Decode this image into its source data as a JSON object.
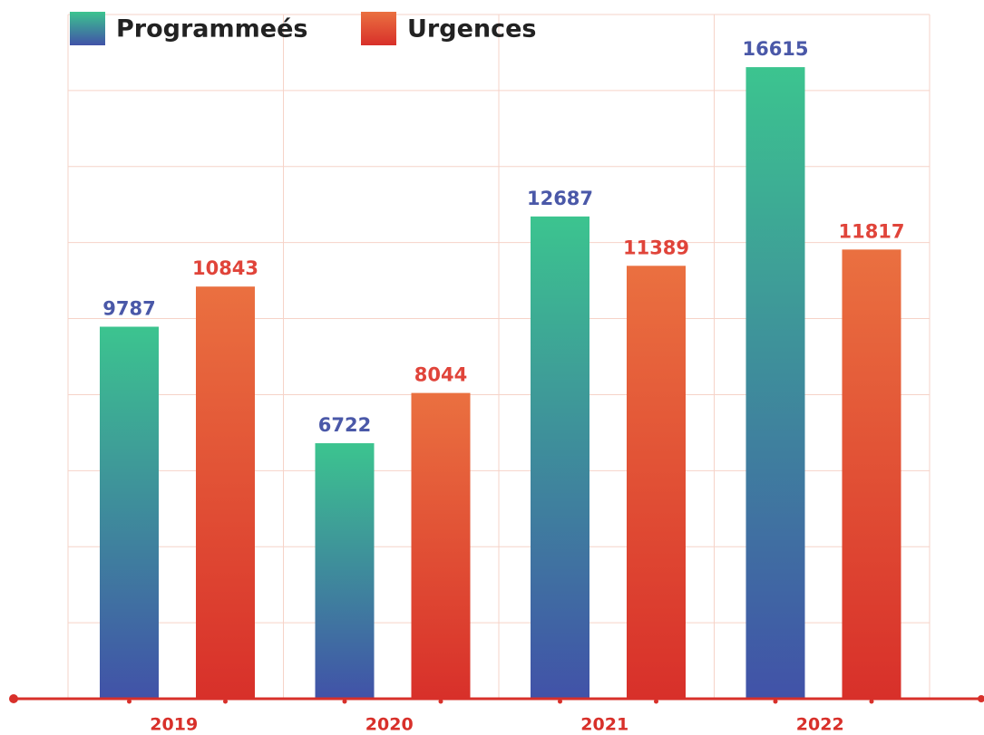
{
  "chart_data": {
    "type": "bar",
    "categories": [
      "2019",
      "2020",
      "2021",
      "2022"
    ],
    "series": [
      {
        "name": "Programmeés",
        "color": "#4a58a8",
        "gradient": [
          "#3cc48f",
          "#4152a8"
        ],
        "values": [
          9787,
          6722,
          12687,
          16615
        ]
      },
      {
        "name": "Urgences",
        "color": "#e0443a",
        "gradient": [
          "#ea7040",
          "#d8302a"
        ],
        "values": [
          10843,
          8044,
          11389,
          11817
        ]
      }
    ],
    "ylim": [
      0,
      18000
    ],
    "yticks": [
      0,
      2000,
      4000,
      6000,
      8000,
      10000,
      12000,
      14000,
      16000,
      18000
    ],
    "grid": true
  }
}
